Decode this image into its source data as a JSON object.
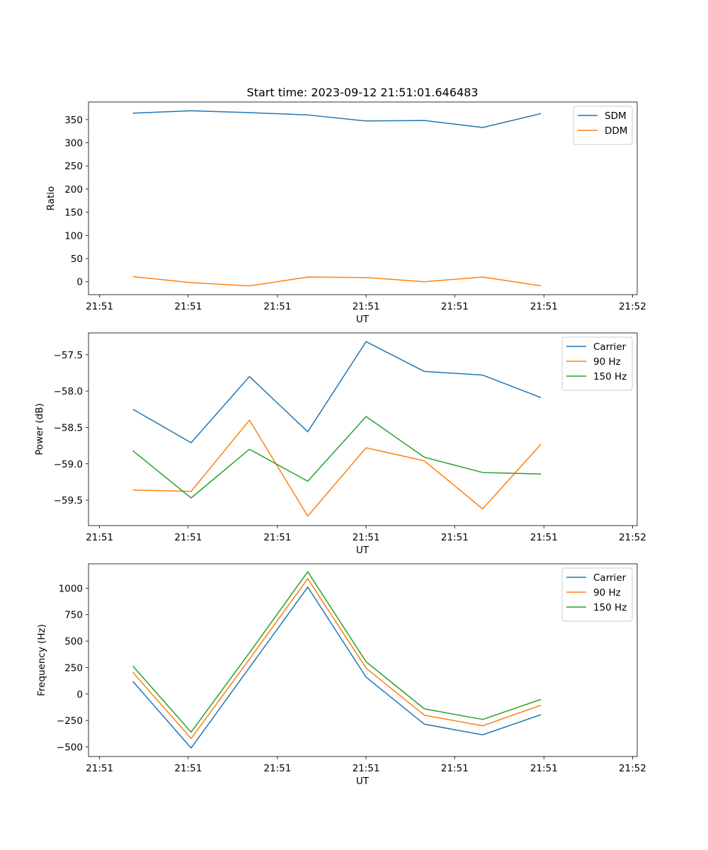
{
  "figure_title": "Start time: 2023-09-12 21:51:01.646483",
  "colors": {
    "blue": "#1f77b4",
    "orange": "#ff7f0e",
    "green": "#2ca02c"
  },
  "chart_data": [
    {
      "type": "line",
      "title": "Start time: 2023-09-12 21:51:01.646483",
      "xlabel": "UT",
      "ylabel": "Ratio",
      "x": [
        1,
        2,
        3,
        4,
        5,
        6,
        7,
        8
      ],
      "xlim": [
        0.24,
        9.65
      ],
      "xticks": [
        0.43,
        1.95,
        3.48,
        5.0,
        6.52,
        8.05,
        9.57
      ],
      "xtick_labels": [
        "21:51",
        "21:51",
        "21:51",
        "21:51",
        "21:51",
        "21:51",
        "21:52"
      ],
      "ylim": [
        -28,
        388
      ],
      "yticks": [
        0,
        50,
        100,
        150,
        200,
        250,
        300,
        350
      ],
      "ytick_labels": [
        "0",
        "50",
        "100",
        "150",
        "200",
        "250",
        "300",
        "350"
      ],
      "legend": "top-right",
      "grid": false,
      "series": [
        {
          "name": "SDM",
          "color": "#1f77b4",
          "values": [
            364,
            369,
            365,
            360,
            347,
            348,
            333,
            363
          ]
        },
        {
          "name": "DDM",
          "color": "#ff7f0e",
          "values": [
            11,
            -2,
            -9,
            10,
            9,
            0,
            10,
            -9
          ]
        }
      ]
    },
    {
      "type": "line",
      "title": "",
      "xlabel": "UT",
      "ylabel": "Power (dB)",
      "x": [
        1,
        2,
        3,
        4,
        5,
        6,
        7,
        8
      ],
      "xlim": [
        0.24,
        9.65
      ],
      "xticks": [
        0.43,
        1.95,
        3.48,
        5.0,
        6.52,
        8.05,
        9.57
      ],
      "xtick_labels": [
        "21:51",
        "21:51",
        "21:51",
        "21:51",
        "21:51",
        "21:51",
        "21:52"
      ],
      "ylim": [
        -59.85,
        -57.2
      ],
      "yticks": [
        -59.5,
        -59.0,
        -58.5,
        -58.0,
        -57.5
      ],
      "ytick_labels": [
        "−59.5",
        "−59.0",
        "−58.5",
        "−58.0",
        "−57.5"
      ],
      "legend": "top-right",
      "grid": false,
      "series": [
        {
          "name": "Carrier",
          "color": "#1f77b4",
          "values": [
            -58.25,
            -58.71,
            -57.8,
            -58.56,
            -57.32,
            -57.73,
            -57.78,
            -58.09
          ]
        },
        {
          "name": "90 Hz",
          "color": "#ff7f0e",
          "values": [
            -59.36,
            -59.38,
            -58.4,
            -59.72,
            -58.78,
            -58.96,
            -59.62,
            -58.73
          ]
        },
        {
          "name": "150 Hz",
          "color": "#2ca02c",
          "values": [
            -58.82,
            -59.47,
            -58.8,
            -59.24,
            -58.35,
            -58.91,
            -59.12,
            -59.14
          ]
        }
      ]
    },
    {
      "type": "line",
      "title": "",
      "xlabel": "UT",
      "ylabel": "Frequency (Hz)",
      "x": [
        1,
        2,
        3,
        4,
        5,
        6,
        7,
        8
      ],
      "xlim": [
        0.24,
        9.65
      ],
      "xticks": [
        0.43,
        1.95,
        3.48,
        5.0,
        6.52,
        8.05,
        9.57
      ],
      "xtick_labels": [
        "21:51",
        "21:51",
        "21:51",
        "21:51",
        "21:51",
        "21:51",
        "21:52"
      ],
      "ylim": [
        -590,
        1230
      ],
      "yticks": [
        -500,
        -250,
        0,
        250,
        500,
        750,
        1000
      ],
      "ytick_labels": [
        "−500",
        "−250",
        "0",
        "250",
        "500",
        "750",
        "1000"
      ],
      "legend": "top-right",
      "grid": false,
      "series": [
        {
          "name": "Carrier",
          "color": "#1f77b4",
          "values": [
            120,
            -510,
            250,
            1010,
            160,
            -285,
            -385,
            -195
          ]
        },
        {
          "name": "90 Hz",
          "color": "#ff7f0e",
          "values": [
            205,
            -420,
            330,
            1090,
            245,
            -200,
            -300,
            -105
          ]
        },
        {
          "name": "150 Hz",
          "color": "#2ca02c",
          "values": [
            265,
            -360,
            390,
            1155,
            305,
            -140,
            -240,
            -50
          ]
        }
      ]
    }
  ]
}
